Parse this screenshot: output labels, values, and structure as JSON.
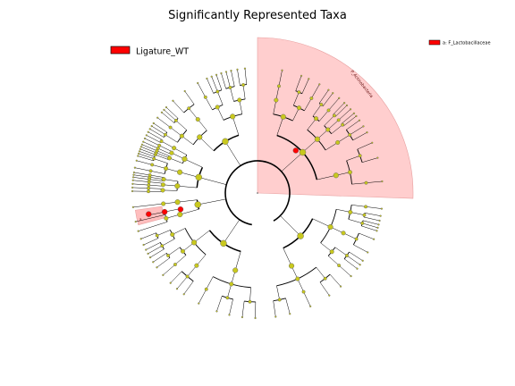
{
  "title": "Significantly Represented Taxa",
  "legend_left": {
    "label": "Ligature_WT",
    "color": "#ff0000"
  },
  "legend_right": {
    "label": "a: F_Lactobacillaceae",
    "color": "#ff0000"
  },
  "highlights": {
    "phylum_label": "P_Actinobacteria",
    "marker_label": "a",
    "highlight_fill": "#ffb3b3",
    "enriched_node_color": "#ff0000",
    "neutral_node_color": "#c8c81e"
  }
}
